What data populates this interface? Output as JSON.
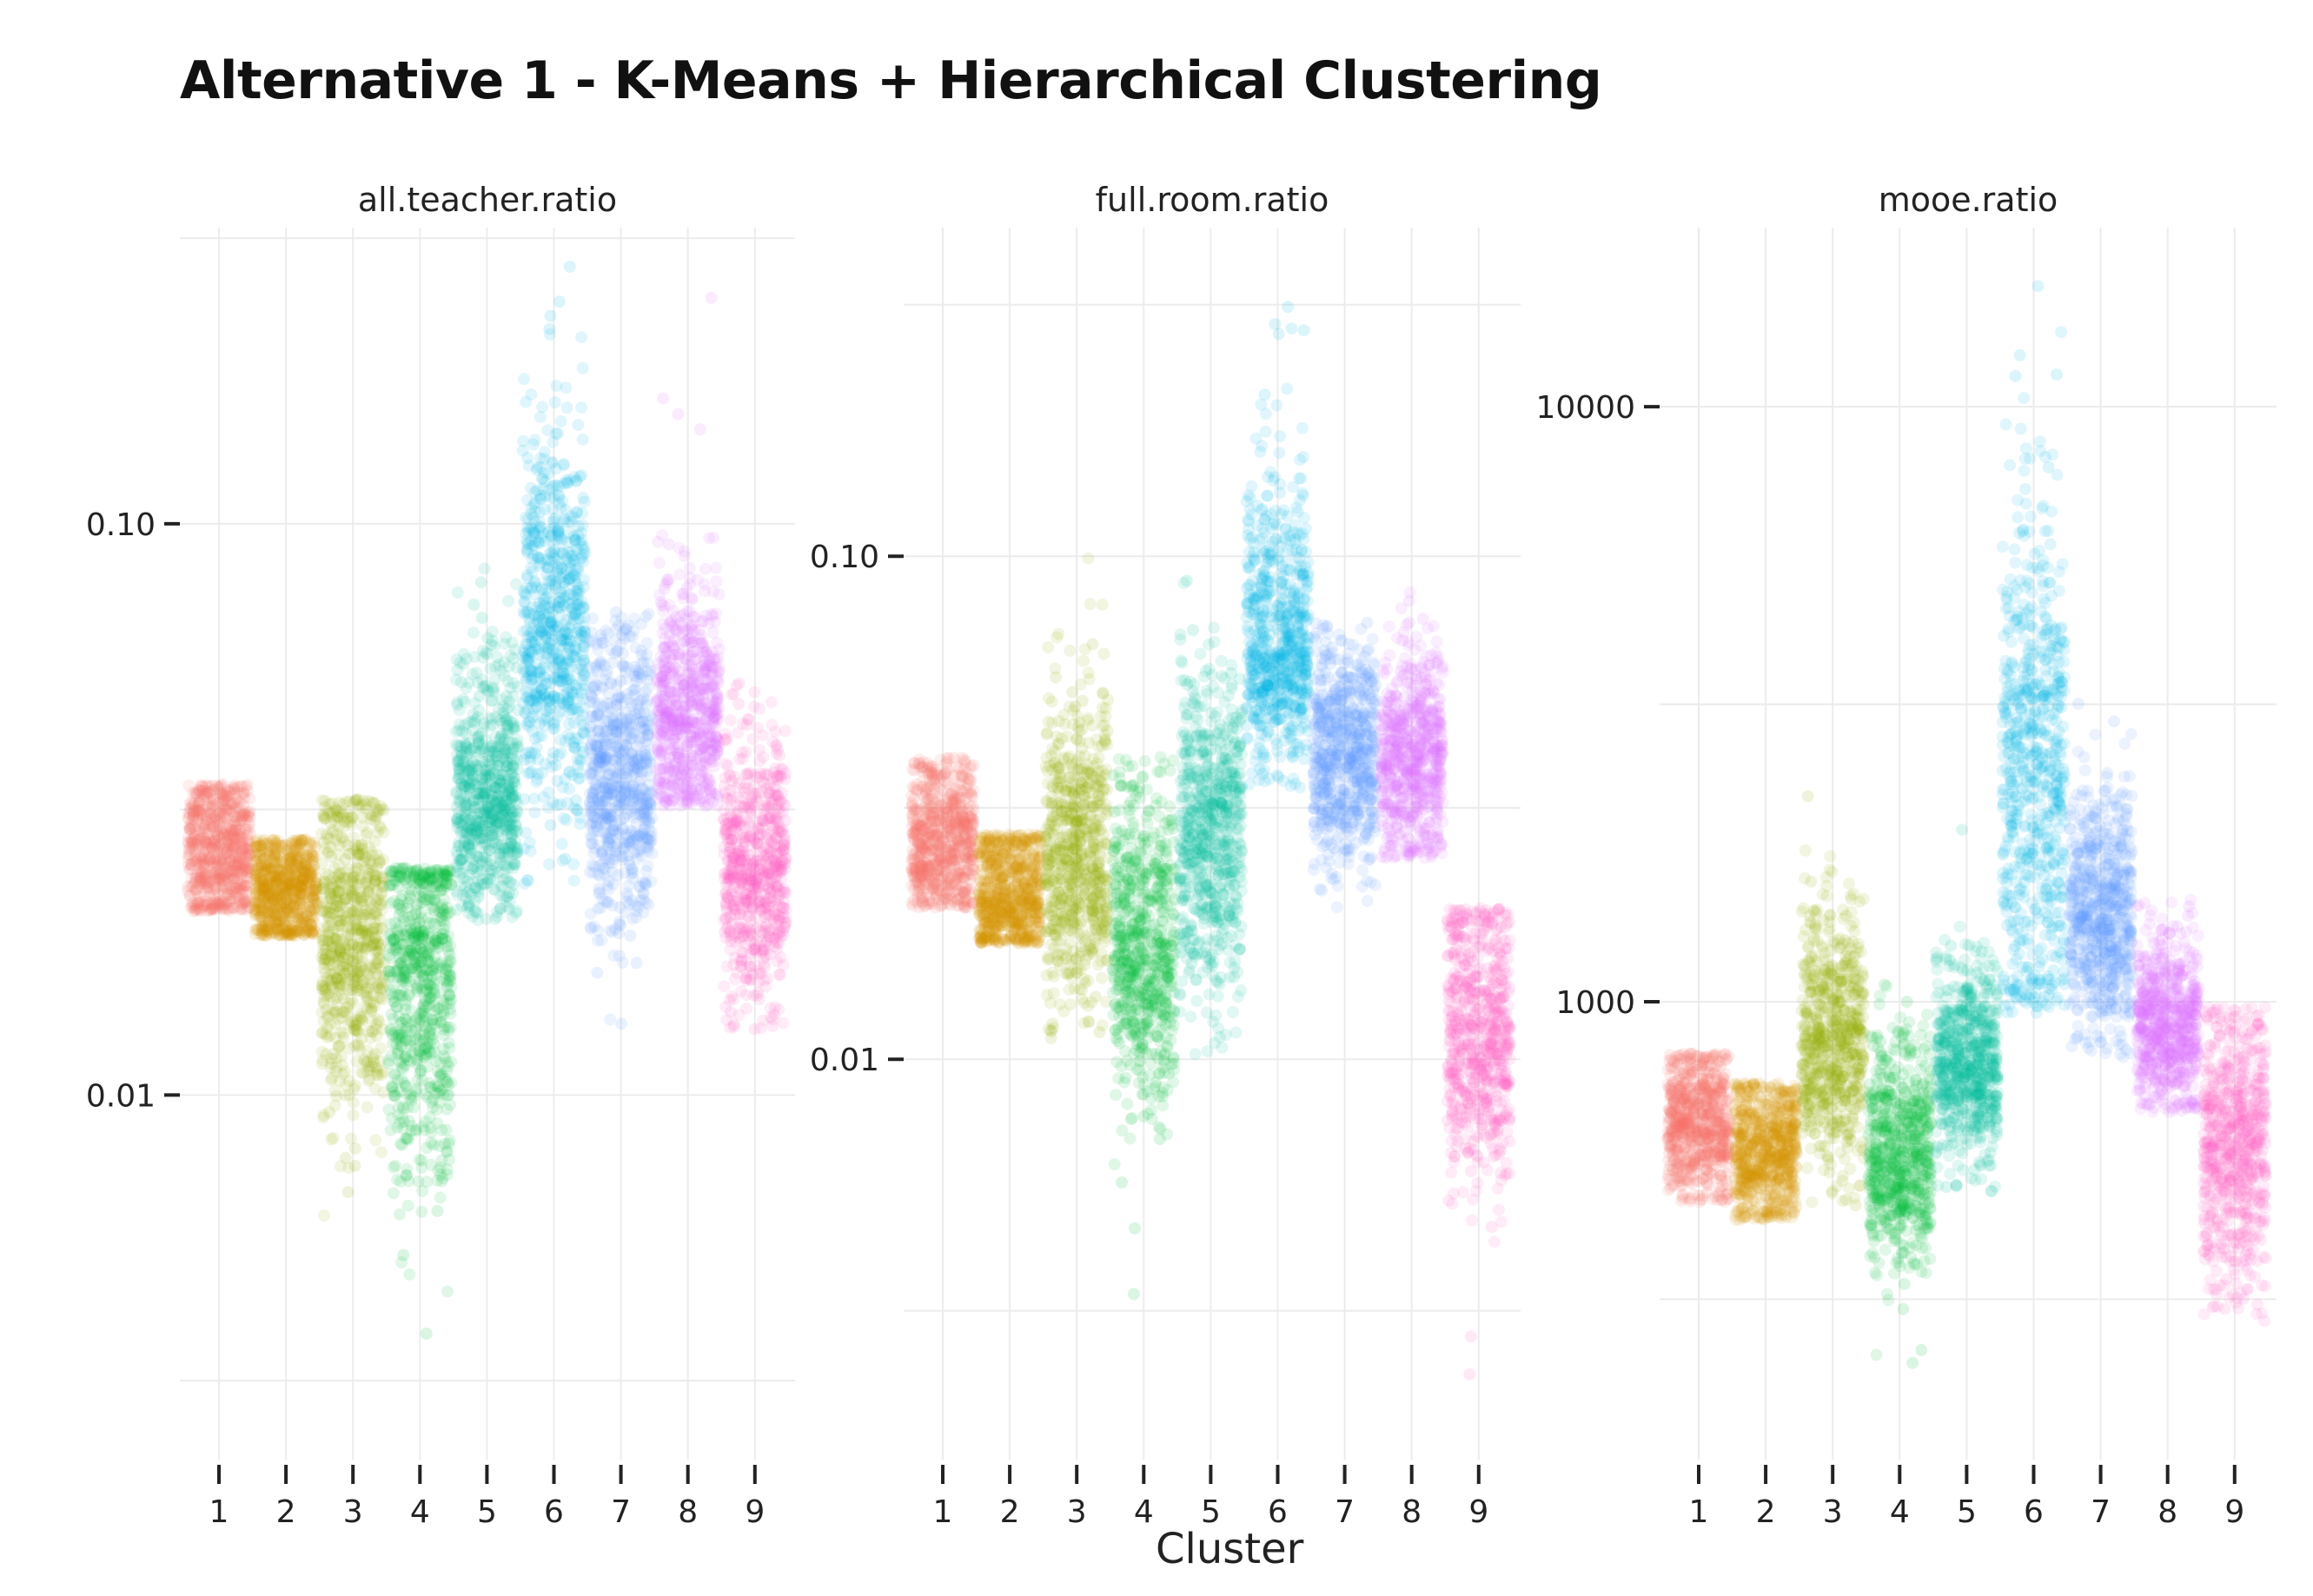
{
  "title": "Alternative 1 - K-Means + Hierarchical Clustering",
  "xlabel": "Cluster",
  "colors": [
    "#F8766D",
    "#D39200",
    "#93AA00",
    "#00BA38",
    "#00C19F",
    "#00B9E3",
    "#619CFF",
    "#DB72FB",
    "#FF61C3"
  ],
  "chart_data": [
    {
      "type": "scatter",
      "title": "all.teacher.ratio",
      "xlabel": "Cluster",
      "ylabel": "",
      "y_scale": "log",
      "categories": [
        "1",
        "2",
        "3",
        "4",
        "5",
        "6",
        "7",
        "8",
        "9"
      ],
      "ylim": [
        0.0023,
        0.33
      ],
      "y_ticks": [
        {
          "value": 0.1,
          "label": "0.10"
        },
        {
          "value": 0.01,
          "label": "0.01"
        }
      ],
      "grid": true,
      "series": [
        {
          "cluster": "1",
          "median": 0.027,
          "q1": 0.024,
          "q3": 0.03,
          "min": 0.021,
          "max": 0.035
        },
        {
          "cluster": "2",
          "median": 0.023,
          "q1": 0.021,
          "q3": 0.025,
          "min": 0.019,
          "max": 0.028
        },
        {
          "cluster": "3",
          "median": 0.019,
          "q1": 0.015,
          "q3": 0.024,
          "min": 0.006,
          "max": 0.033
        },
        {
          "cluster": "4",
          "median": 0.016,
          "q1": 0.012,
          "q3": 0.02,
          "min": 0.0025,
          "max": 0.025
        },
        {
          "cluster": "5",
          "median": 0.033,
          "q1": 0.028,
          "q3": 0.04,
          "min": 0.02,
          "max": 0.09
        },
        {
          "cluster": "6",
          "median": 0.065,
          "q1": 0.052,
          "q3": 0.085,
          "min": 0.022,
          "max": 0.3
        },
        {
          "cluster": "7",
          "median": 0.036,
          "q1": 0.03,
          "q3": 0.044,
          "min": 0.013,
          "max": 0.07
        },
        {
          "cluster": "8",
          "median": 0.046,
          "q1": 0.04,
          "q3": 0.055,
          "min": 0.032,
          "max": 0.28
        },
        {
          "cluster": "9",
          "median": 0.025,
          "q1": 0.021,
          "q3": 0.03,
          "min": 0.013,
          "max": 0.06
        }
      ]
    },
    {
      "type": "scatter",
      "title": "full.room.ratio",
      "xlabel": "Cluster",
      "ylabel": "",
      "y_scale": "log",
      "categories": [
        "1",
        "2",
        "3",
        "4",
        "5",
        "6",
        "7",
        "8",
        "9"
      ],
      "ylim": [
        0.0016,
        0.45
      ],
      "y_ticks": [
        {
          "value": 0.1,
          "label": "0.10"
        },
        {
          "value": 0.01,
          "label": "0.01"
        }
      ],
      "grid": true,
      "series": [
        {
          "cluster": "1",
          "median": 0.027,
          "q1": 0.024,
          "q3": 0.031,
          "min": 0.02,
          "max": 0.04
        },
        {
          "cluster": "2",
          "median": 0.021,
          "q1": 0.019,
          "q3": 0.024,
          "min": 0.017,
          "max": 0.028
        },
        {
          "cluster": "3",
          "median": 0.026,
          "q1": 0.021,
          "q3": 0.033,
          "min": 0.011,
          "max": 0.1
        },
        {
          "cluster": "4",
          "median": 0.016,
          "q1": 0.013,
          "q3": 0.021,
          "min": 0.0033,
          "max": 0.04
        },
        {
          "cluster": "5",
          "median": 0.029,
          "q1": 0.022,
          "q3": 0.037,
          "min": 0.01,
          "max": 0.09
        },
        {
          "cluster": "6",
          "median": 0.065,
          "q1": 0.055,
          "q3": 0.085,
          "min": 0.022,
          "max": 0.4
        },
        {
          "cluster": "7",
          "median": 0.04,
          "q1": 0.034,
          "q3": 0.048,
          "min": 0.02,
          "max": 0.075
        },
        {
          "cluster": "8",
          "median": 0.04,
          "q1": 0.034,
          "q3": 0.047,
          "min": 0.025,
          "max": 0.085
        },
        {
          "cluster": "9",
          "median": 0.011,
          "q1": 0.009,
          "q3": 0.014,
          "min": 0.002,
          "max": 0.02
        }
      ]
    },
    {
      "type": "scatter",
      "title": "mooe.ratio",
      "xlabel": "Cluster",
      "ylabel": "",
      "y_scale": "log",
      "categories": [
        "1",
        "2",
        "3",
        "4",
        "5",
        "6",
        "7",
        "8",
        "9"
      ],
      "ylim": [
        170,
        20000
      ],
      "y_ticks": [
        {
          "value": 10000,
          "label": "10000"
        },
        {
          "value": 1000,
          "label": "1000"
        }
      ],
      "grid": true,
      "series": [
        {
          "cluster": "1",
          "median": 620,
          "q1": 560,
          "q3": 690,
          "min": 460,
          "max": 820
        },
        {
          "cluster": "2",
          "median": 560,
          "q1": 510,
          "q3": 620,
          "min": 430,
          "max": 730
        },
        {
          "cluster": "3",
          "median": 850,
          "q1": 720,
          "q3": 1000,
          "min": 450,
          "max": 2400
        },
        {
          "cluster": "4",
          "median": 540,
          "q1": 470,
          "q3": 640,
          "min": 210,
          "max": 1100
        },
        {
          "cluster": "5",
          "median": 780,
          "q1": 690,
          "q3": 890,
          "min": 480,
          "max": 2000
        },
        {
          "cluster": "6",
          "median": 2500,
          "q1": 1700,
          "q3": 3500,
          "min": 950,
          "max": 17000
        },
        {
          "cluster": "7",
          "median": 1400,
          "q1": 1200,
          "q3": 1650,
          "min": 800,
          "max": 3200
        },
        {
          "cluster": "8",
          "median": 920,
          "q1": 820,
          "q3": 1030,
          "min": 650,
          "max": 1500
        },
        {
          "cluster": "9",
          "median": 580,
          "q1": 480,
          "q3": 700,
          "min": 290,
          "max": 980
        }
      ]
    }
  ]
}
